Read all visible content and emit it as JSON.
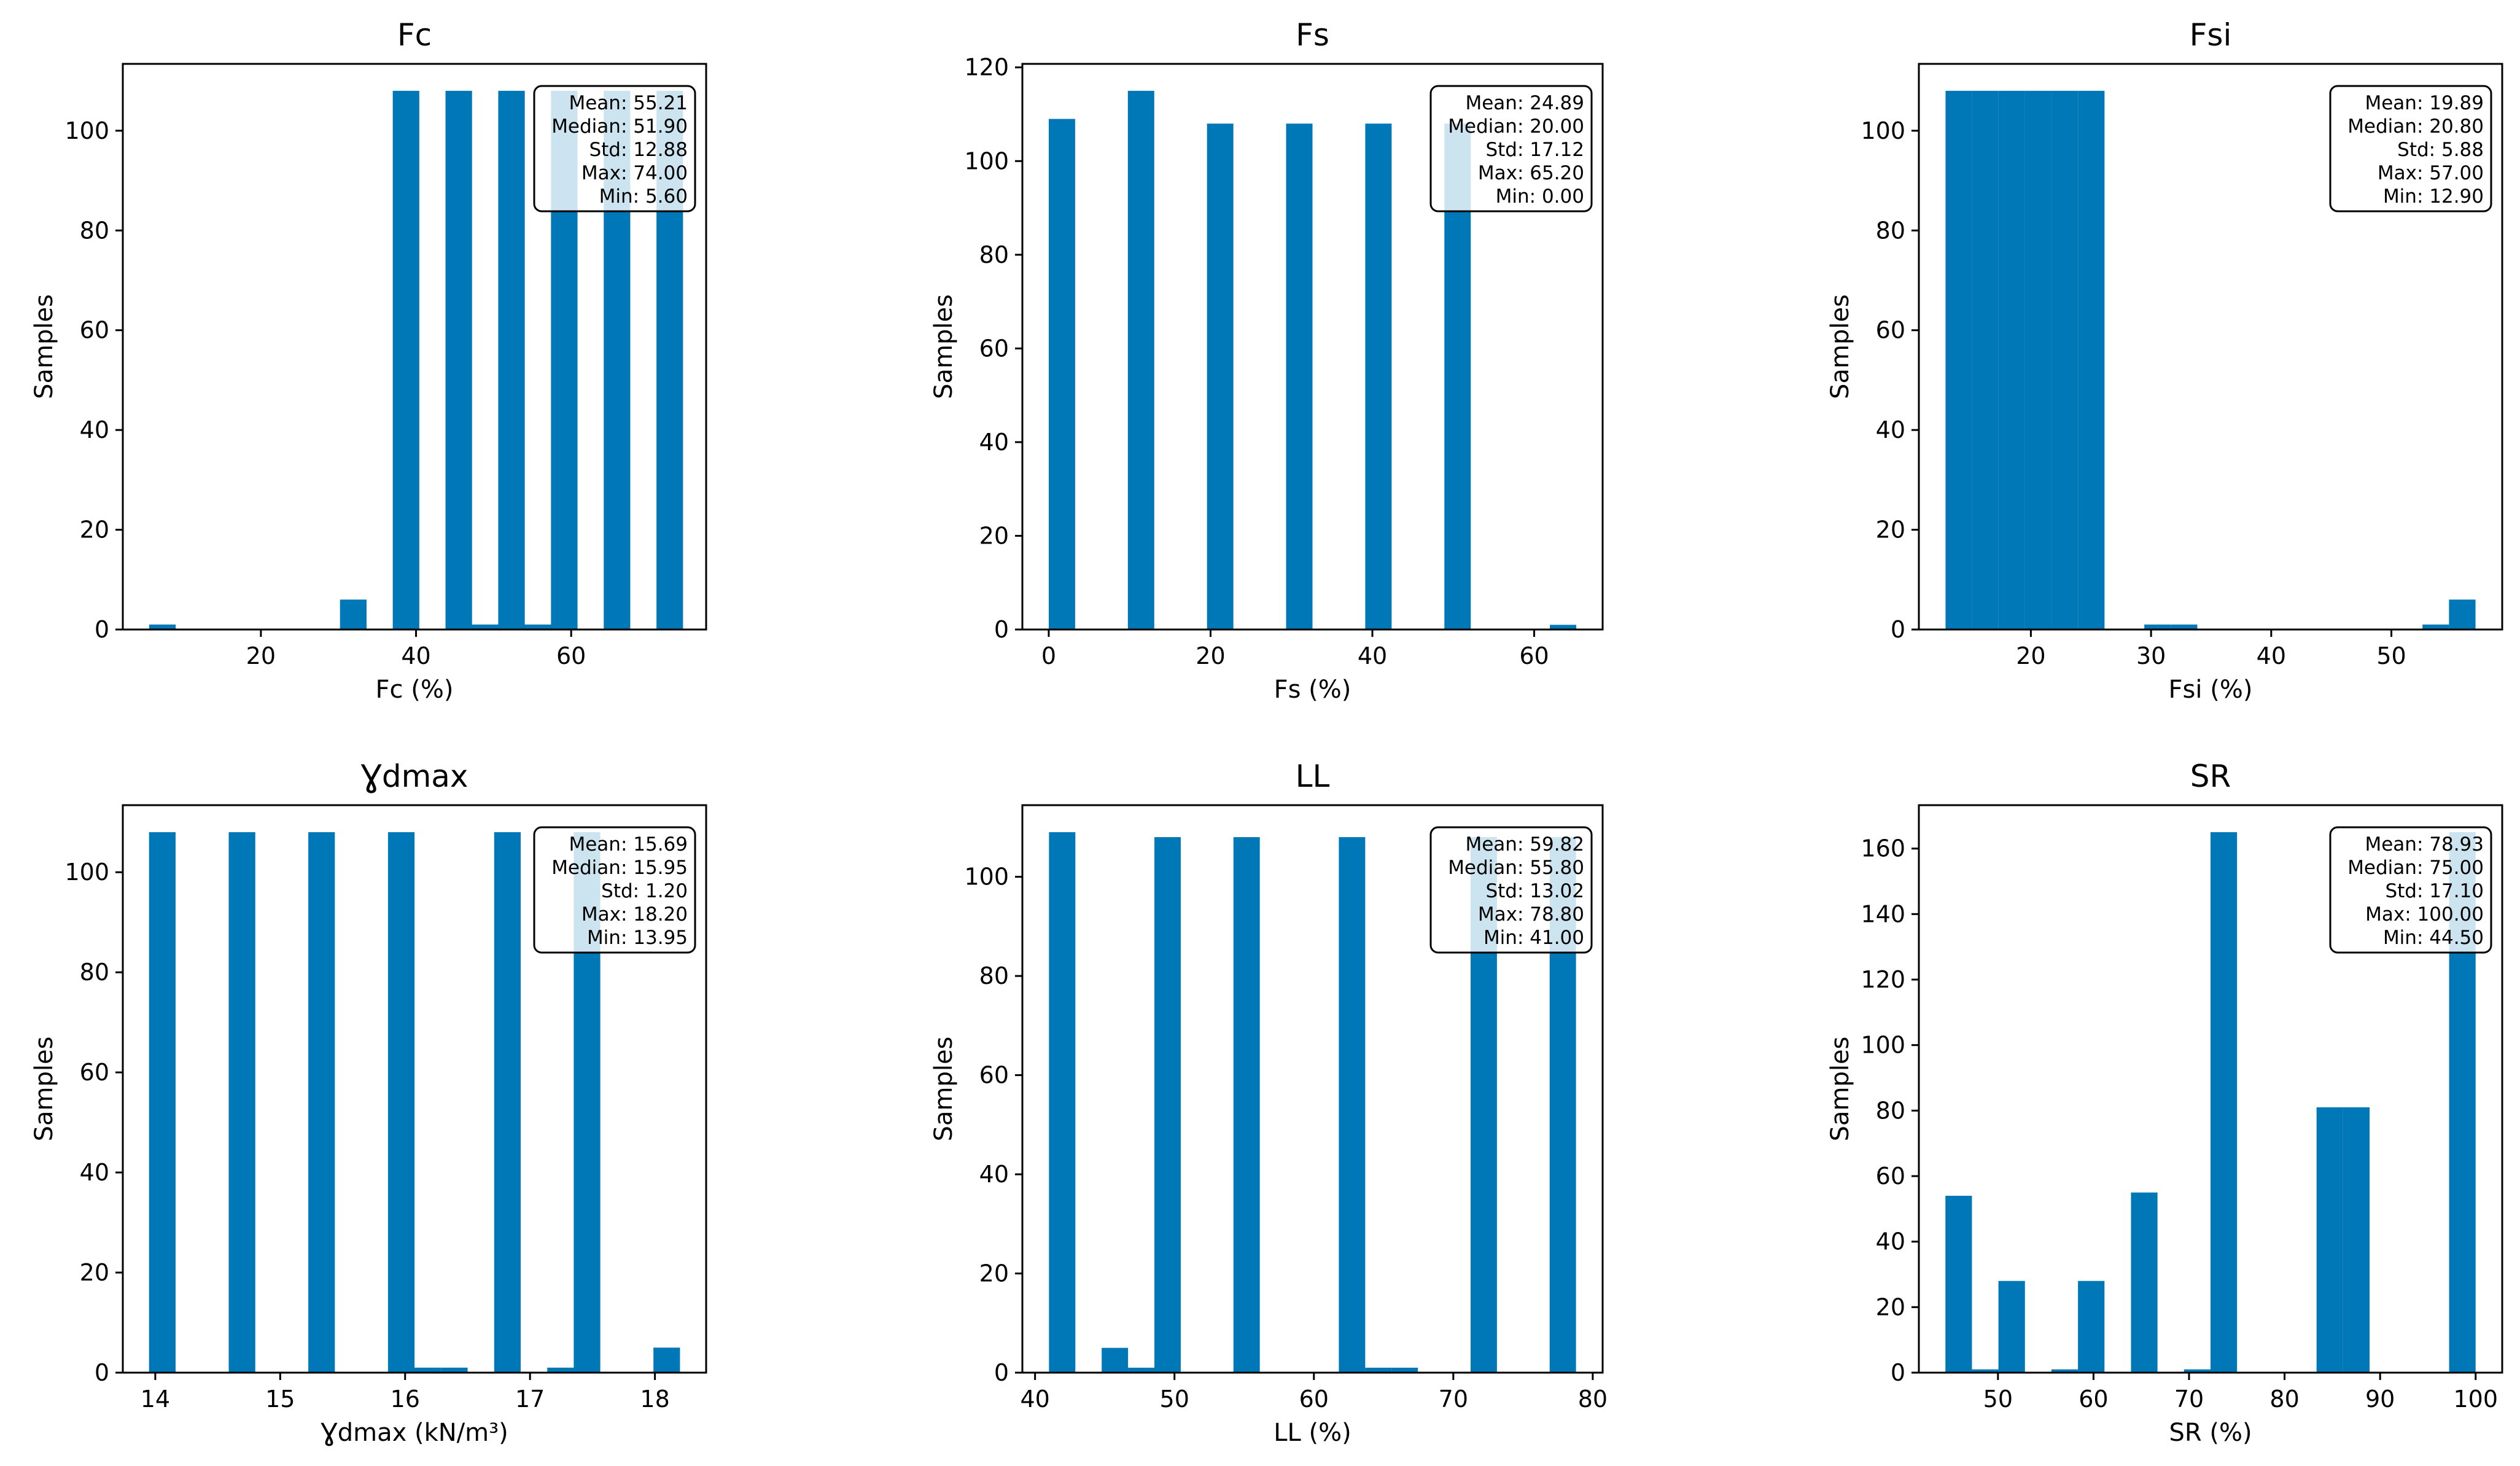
{
  "colors": {
    "bar": "#0077b6",
    "axis": "#000000",
    "box_fill": "#ffffff",
    "background": "#ffffff"
  },
  "chart_data": [
    {
      "type": "bar",
      "title": "Fc",
      "xlabel": "Fc (%)",
      "ylabel": "Samples",
      "xlim": [
        2.2,
        77.4
      ],
      "ylim": [
        0,
        113.4
      ],
      "xticks": [
        20,
        40,
        60
      ],
      "yticks": [
        0,
        20,
        40,
        60,
        80,
        100
      ],
      "bin_width": 3.42,
      "bars": [
        [
          5.6,
          1
        ],
        [
          30.2,
          6
        ],
        [
          37.0,
          108
        ],
        [
          43.8,
          108
        ],
        [
          47.2,
          1
        ],
        [
          50.6,
          108
        ],
        [
          54.0,
          1
        ],
        [
          57.4,
          108
        ],
        [
          64.2,
          108
        ],
        [
          71.0,
          108
        ]
      ],
      "stats": [
        "Mean: 55.21",
        "Median: 51.90",
        "Std: 12.88",
        "Max: 74.00",
        "Min: 5.60"
      ]
    },
    {
      "type": "bar",
      "title": "Fs",
      "xlabel": "Fs (%)",
      "ylabel": "Samples",
      "xlim": [
        -3.26,
        68.46
      ],
      "ylim": [
        0,
        120.75
      ],
      "xticks": [
        0,
        20,
        40,
        60
      ],
      "yticks": [
        0,
        20,
        40,
        60,
        80,
        100,
        120
      ],
      "bin_width": 3.26,
      "bars": [
        [
          0,
          109
        ],
        [
          9.78,
          115
        ],
        [
          19.56,
          108
        ],
        [
          29.34,
          108
        ],
        [
          39.12,
          108
        ],
        [
          48.9,
          108
        ],
        [
          61.94,
          1
        ]
      ],
      "stats": [
        "Mean: 24.89",
        "Median: 20.00",
        "Std: 17.12",
        "Max: 65.20",
        "Min: 0.00"
      ]
    },
    {
      "type": "bar",
      "title": "Fsi",
      "xlabel": "Fsi (%)",
      "ylabel": "Samples",
      "xlim": [
        10.68,
        59.22
      ],
      "ylim": [
        0,
        113.4
      ],
      "xticks": [
        20,
        30,
        40,
        50
      ],
      "yticks": [
        0,
        20,
        40,
        60,
        80,
        100
      ],
      "bin_width": 2.205,
      "bars": [
        [
          12.9,
          108
        ],
        [
          15.105,
          108
        ],
        [
          17.31,
          108
        ],
        [
          19.515,
          108
        ],
        [
          21.72,
          108
        ],
        [
          23.925,
          108
        ],
        [
          29.44,
          1
        ],
        [
          31.645,
          1
        ],
        [
          52.59,
          1
        ],
        [
          54.795,
          6
        ]
      ],
      "stats": [
        "Mean: 19.89",
        "Median: 20.80",
        "Std: 5.88",
        "Max: 57.00",
        "Min: 12.90"
      ]
    },
    {
      "type": "bar",
      "title": "Ɣdmax",
      "xlabel": "Ɣdmax (kN/m³)",
      "ylabel": "Samples",
      "xlim": [
        13.74,
        18.41
      ],
      "ylim": [
        0,
        113.4
      ],
      "xticks": [
        14,
        15,
        16,
        17,
        18
      ],
      "yticks": [
        0,
        20,
        40,
        60,
        80,
        100
      ],
      "bin_width": 0.2125,
      "bars": [
        [
          13.95,
          108
        ],
        [
          14.588,
          108
        ],
        [
          15.225,
          108
        ],
        [
          15.863,
          108
        ],
        [
          16.075,
          1
        ],
        [
          16.288,
          1
        ],
        [
          16.713,
          108
        ],
        [
          17.138,
          1
        ],
        [
          17.35,
          108
        ],
        [
          17.988,
          5
        ]
      ],
      "stats": [
        "Mean: 15.69",
        "Median: 15.95",
        "Std: 1.20",
        "Max: 18.20",
        "Min: 13.95"
      ]
    },
    {
      "type": "bar",
      "title": "LL",
      "xlabel": "LL (%)",
      "ylabel": "Samples",
      "xlim": [
        39.09,
        80.71
      ],
      "ylim": [
        0,
        114.45
      ],
      "xticks": [
        40,
        50,
        60,
        70,
        80
      ],
      "yticks": [
        0,
        20,
        40,
        60,
        80,
        100
      ],
      "bin_width": 1.89,
      "bars": [
        [
          41.0,
          109
        ],
        [
          44.78,
          5
        ],
        [
          46.67,
          1
        ],
        [
          48.56,
          108
        ],
        [
          54.23,
          108
        ],
        [
          61.79,
          108
        ],
        [
          63.68,
          1
        ],
        [
          65.57,
          1
        ],
        [
          71.24,
          108
        ],
        [
          76.91,
          108
        ]
      ],
      "stats": [
        "Mean: 59.82",
        "Median: 55.80",
        "Std: 13.02",
        "Max: 78.80",
        "Min: 41.00"
      ]
    },
    {
      "type": "bar",
      "title": "SR",
      "xlabel": "SR (%)",
      "ylabel": "Samples",
      "xlim": [
        41.72,
        102.78
      ],
      "ylim": [
        0,
        173.25
      ],
      "xticks": [
        50,
        60,
        70,
        80,
        90,
        100
      ],
      "yticks": [
        0,
        20,
        40,
        60,
        80,
        100,
        120,
        140,
        160
      ],
      "bin_width": 2.775,
      "bars": [
        [
          44.5,
          54
        ],
        [
          47.275,
          1
        ],
        [
          50.05,
          28
        ],
        [
          55.6,
          1
        ],
        [
          58.375,
          28
        ],
        [
          63.925,
          55
        ],
        [
          69.475,
          1
        ],
        [
          72.25,
          165
        ],
        [
          83.35,
          81
        ],
        [
          86.125,
          81
        ],
        [
          97.225,
          165
        ]
      ],
      "stats": [
        "Mean: 78.93",
        "Median: 75.00",
        "Std: 17.10",
        "Max: 100.00",
        "Min: 44.50"
      ]
    }
  ]
}
